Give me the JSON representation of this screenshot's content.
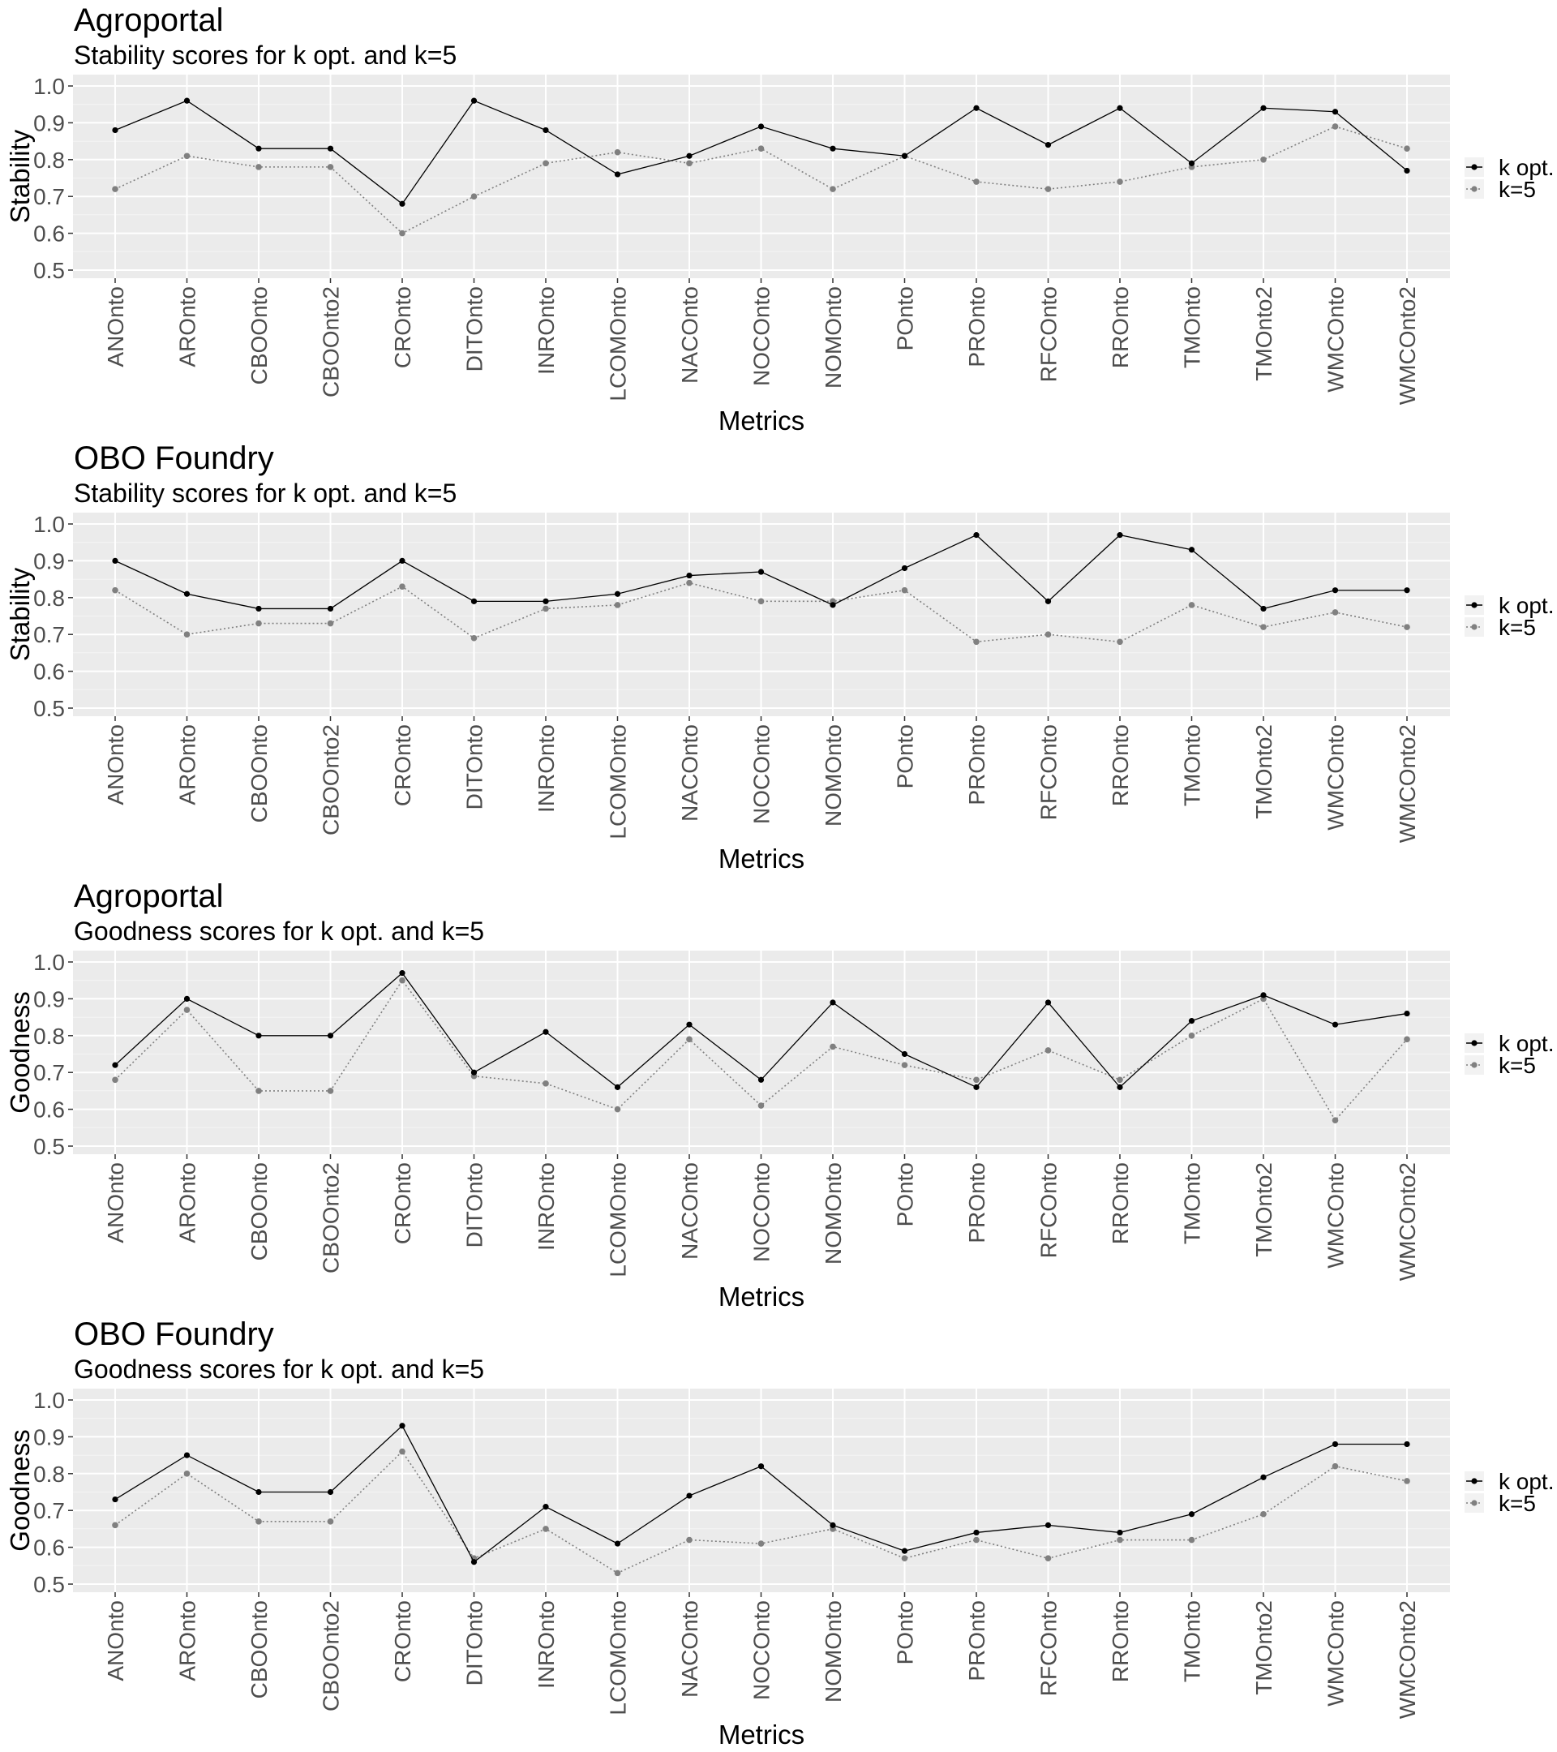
{
  "chart_data": [
    {
      "type": "line",
      "title": "Agroportal",
      "subtitle": "Stability scores for k opt. and k=5",
      "xlabel": "Metrics",
      "ylabel": "Stability",
      "ylim": [
        0.5,
        1.0
      ],
      "yticks": [
        "0.5",
        "0.6",
        "0.7",
        "0.8",
        "0.9",
        "1.0"
      ],
      "grid": true,
      "legend_position": "right",
      "categories": [
        "ANOnto",
        "AROnto",
        "CBOOnto",
        "CBOOnto2",
        "CROnto",
        "DITOnto",
        "INROnto",
        "LCOMOnto",
        "NACOnto",
        "NOCOnto",
        "NOMOnto",
        "POnto",
        "PROnto",
        "RFCOnto",
        "RROnto",
        "TMOnto",
        "TMOnto2",
        "WMCOnto",
        "WMCOnto2"
      ],
      "series": [
        {
          "name": "k opt.",
          "color": "#000000",
          "dash": "solid",
          "values": [
            0.88,
            0.96,
            0.83,
            0.83,
            0.68,
            0.96,
            0.88,
            0.76,
            0.81,
            0.89,
            0.83,
            0.81,
            0.94,
            0.84,
            0.94,
            0.79,
            0.94,
            0.93,
            0.77
          ]
        },
        {
          "name": "k=5",
          "color": "#808080",
          "dash": "dotted",
          "values": [
            0.72,
            0.81,
            0.78,
            0.78,
            0.6,
            0.7,
            0.79,
            0.82,
            0.79,
            0.83,
            0.72,
            0.81,
            0.74,
            0.72,
            0.74,
            0.78,
            0.8,
            0.89,
            0.83
          ]
        }
      ]
    },
    {
      "type": "line",
      "title": "OBO Foundry",
      "subtitle": "Stability scores for k opt. and k=5",
      "xlabel": "Metrics",
      "ylabel": "Stability",
      "ylim": [
        0.5,
        1.0
      ],
      "yticks": [
        "0.5",
        "0.6",
        "0.7",
        "0.8",
        "0.9",
        "1.0"
      ],
      "grid": true,
      "legend_position": "right",
      "categories": [
        "ANOnto",
        "AROnto",
        "CBOOnto",
        "CBOOnto2",
        "CROnto",
        "DITOnto",
        "INROnto",
        "LCOMOnto",
        "NACOnto",
        "NOCOnto",
        "NOMOnto",
        "POnto",
        "PROnto",
        "RFCOnto",
        "RROnto",
        "TMOnto",
        "TMOnto2",
        "WMCOnto",
        "WMCOnto2"
      ],
      "series": [
        {
          "name": "k opt.",
          "color": "#000000",
          "dash": "solid",
          "values": [
            0.9,
            0.81,
            0.77,
            0.77,
            0.9,
            0.79,
            0.79,
            0.81,
            0.86,
            0.87,
            0.78,
            0.88,
            0.97,
            0.79,
            0.97,
            0.93,
            0.77,
            0.82,
            0.82
          ]
        },
        {
          "name": "k=5",
          "color": "#808080",
          "dash": "dotted",
          "values": [
            0.82,
            0.7,
            0.73,
            0.73,
            0.83,
            0.69,
            0.77,
            0.78,
            0.84,
            0.79,
            0.79,
            0.82,
            0.68,
            0.7,
            0.68,
            0.78,
            0.72,
            0.76,
            0.72
          ]
        }
      ]
    },
    {
      "type": "line",
      "title": "Agroportal",
      "subtitle": "Goodness scores for k opt. and k=5",
      "xlabel": "Metrics",
      "ylabel": "Goodness",
      "ylim": [
        0.5,
        1.0
      ],
      "yticks": [
        "0.5",
        "0.6",
        "0.7",
        "0.8",
        "0.9",
        "1.0"
      ],
      "grid": true,
      "legend_position": "right",
      "categories": [
        "ANOnto",
        "AROnto",
        "CBOOnto",
        "CBOOnto2",
        "CROnto",
        "DITOnto",
        "INROnto",
        "LCOMOnto",
        "NACOnto",
        "NOCOnto",
        "NOMOnto",
        "POnto",
        "PROnto",
        "RFCOnto",
        "RROnto",
        "TMOnto",
        "TMOnto2",
        "WMCOnto",
        "WMCOnto2"
      ],
      "series": [
        {
          "name": "k opt.",
          "color": "#000000",
          "dash": "solid",
          "values": [
            0.72,
            0.9,
            0.8,
            0.8,
            0.97,
            0.7,
            0.81,
            0.66,
            0.83,
            0.68,
            0.89,
            0.75,
            0.66,
            0.89,
            0.66,
            0.84,
            0.91,
            0.83,
            0.86
          ]
        },
        {
          "name": "k=5",
          "color": "#808080",
          "dash": "dotted",
          "values": [
            0.68,
            0.87,
            0.65,
            0.65,
            0.95,
            0.69,
            0.67,
            0.6,
            0.79,
            0.61,
            0.77,
            0.72,
            0.68,
            0.76,
            0.68,
            0.8,
            0.9,
            0.57,
            0.79
          ]
        }
      ]
    },
    {
      "type": "line",
      "title": "OBO Foundry",
      "subtitle": "Goodness scores for k opt. and k=5",
      "xlabel": "Metrics",
      "ylabel": "Goodness",
      "ylim": [
        0.5,
        1.0
      ],
      "yticks": [
        "0.5",
        "0.6",
        "0.7",
        "0.8",
        "0.9",
        "1.0"
      ],
      "grid": true,
      "legend_position": "right",
      "categories": [
        "ANOnto",
        "AROnto",
        "CBOOnto",
        "CBOOnto2",
        "CROnto",
        "DITOnto",
        "INROnto",
        "LCOMOnto",
        "NACOnto",
        "NOCOnto",
        "NOMOnto",
        "POnto",
        "PROnto",
        "RFCOnto",
        "RROnto",
        "TMOnto",
        "TMOnto2",
        "WMCOnto",
        "WMCOnto2"
      ],
      "series": [
        {
          "name": "k opt.",
          "color": "#000000",
          "dash": "solid",
          "values": [
            0.73,
            0.85,
            0.75,
            0.75,
            0.93,
            0.56,
            0.71,
            0.61,
            0.74,
            0.82,
            0.66,
            0.59,
            0.64,
            0.66,
            0.64,
            0.69,
            0.79,
            0.88,
            0.88
          ]
        },
        {
          "name": "k=5",
          "color": "#808080",
          "dash": "dotted",
          "values": [
            0.66,
            0.8,
            0.67,
            0.67,
            0.86,
            0.57,
            0.65,
            0.53,
            0.62,
            0.61,
            0.65,
            0.57,
            0.62,
            0.57,
            0.62,
            0.62,
            0.69,
            0.82,
            0.78
          ]
        }
      ]
    }
  ]
}
